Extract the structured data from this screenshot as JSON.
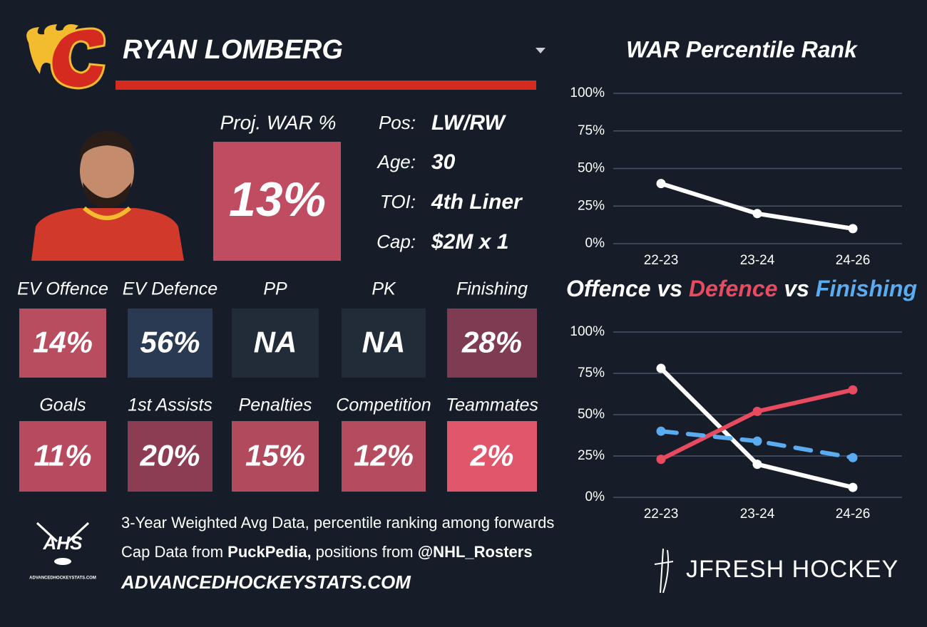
{
  "header": {
    "name": "RYAN LOMBERG"
  },
  "player": {
    "proj_label": "Proj. WAR %",
    "proj_value": "13%",
    "proj_color": "#c04c62",
    "info": [
      {
        "label": "Pos:",
        "value": "LW/RW"
      },
      {
        "label": "Age:",
        "value": "30"
      },
      {
        "label": "TOI:",
        "value": "4th Liner"
      },
      {
        "label": "Cap:",
        "value": "$2M x 1"
      }
    ]
  },
  "tiles": [
    [
      {
        "label": "EV Offence",
        "value": "14%",
        "color": "#b84d60"
      },
      {
        "label": "EV Defence",
        "value": "56%",
        "color": "#2a3a52"
      },
      {
        "label": "PP",
        "value": "NA",
        "color": "#222b38"
      },
      {
        "label": "PK",
        "value": "NA",
        "color": "#222b38"
      },
      {
        "label": "Finishing",
        "value": "28%",
        "color": "#7f3b52"
      }
    ],
    [
      {
        "label": "Goals",
        "value": "11%",
        "color": "#b84a5f"
      },
      {
        "label": "1st Assists",
        "value": "20%",
        "color": "#8c3d54"
      },
      {
        "label": "Penalties",
        "value": "15%",
        "color": "#b24a5e"
      },
      {
        "label": "Competition",
        "value": "12%",
        "color": "#b54b5f"
      },
      {
        "label": "Teammates",
        "value": "2%",
        "color": "#e0566b"
      }
    ]
  ],
  "footer": {
    "logo_text": "AHS",
    "logo_url": "ADVANCEDHOCKEYSTATS.COM",
    "line1": "3-Year Weighted Avg Data, percentile ranking among forwards",
    "line2": [
      {
        "text": "Cap Data from ",
        "bold": false
      },
      {
        "text": "PuckPedia,",
        "bold": true
      },
      {
        "text": " positions from ",
        "bold": false
      },
      {
        "text": "@NHL_Rosters",
        "bold": true
      }
    ],
    "site": "ADVANCEDHOCKEYSTATS.COM",
    "brand": "JFRESH HOCKEY"
  },
  "chart_data": [
    {
      "type": "line",
      "title": "WAR Percentile Rank",
      "categories": [
        "22-23",
        "23-24",
        "24-26"
      ],
      "series": [
        {
          "name": "WAR",
          "color": "#ffffff",
          "values": [
            40,
            20,
            10
          ]
        }
      ],
      "ylim": [
        0,
        100
      ],
      "yticks": [
        {
          "value": 0,
          "label": "0%"
        },
        {
          "value": 25,
          "label": "25%"
        },
        {
          "value": 50,
          "label": "50%"
        },
        {
          "value": 75,
          "label": "75%"
        },
        {
          "value": 100,
          "label": "100%"
        }
      ],
      "grid": true
    },
    {
      "type": "line",
      "title_separator": "vs",
      "categories": [
        "22-23",
        "23-24",
        "24-26"
      ],
      "series": [
        {
          "name": "Offence",
          "color": "#ffffff",
          "values": [
            78,
            20,
            6
          ]
        },
        {
          "name": "Defence",
          "color": "#e84a5f",
          "values": [
            23,
            52,
            65
          ]
        },
        {
          "name": "Finishing",
          "color": "#5aabf0",
          "values": [
            40,
            34,
            24
          ],
          "dashed": true
        }
      ],
      "ylim": [
        0,
        100
      ],
      "yticks": [
        {
          "value": 0,
          "label": "0%"
        },
        {
          "value": 25,
          "label": "25%"
        },
        {
          "value": 50,
          "label": "50%"
        },
        {
          "value": 75,
          "label": "75%"
        },
        {
          "value": 100,
          "label": "100%"
        }
      ],
      "grid": true
    }
  ]
}
